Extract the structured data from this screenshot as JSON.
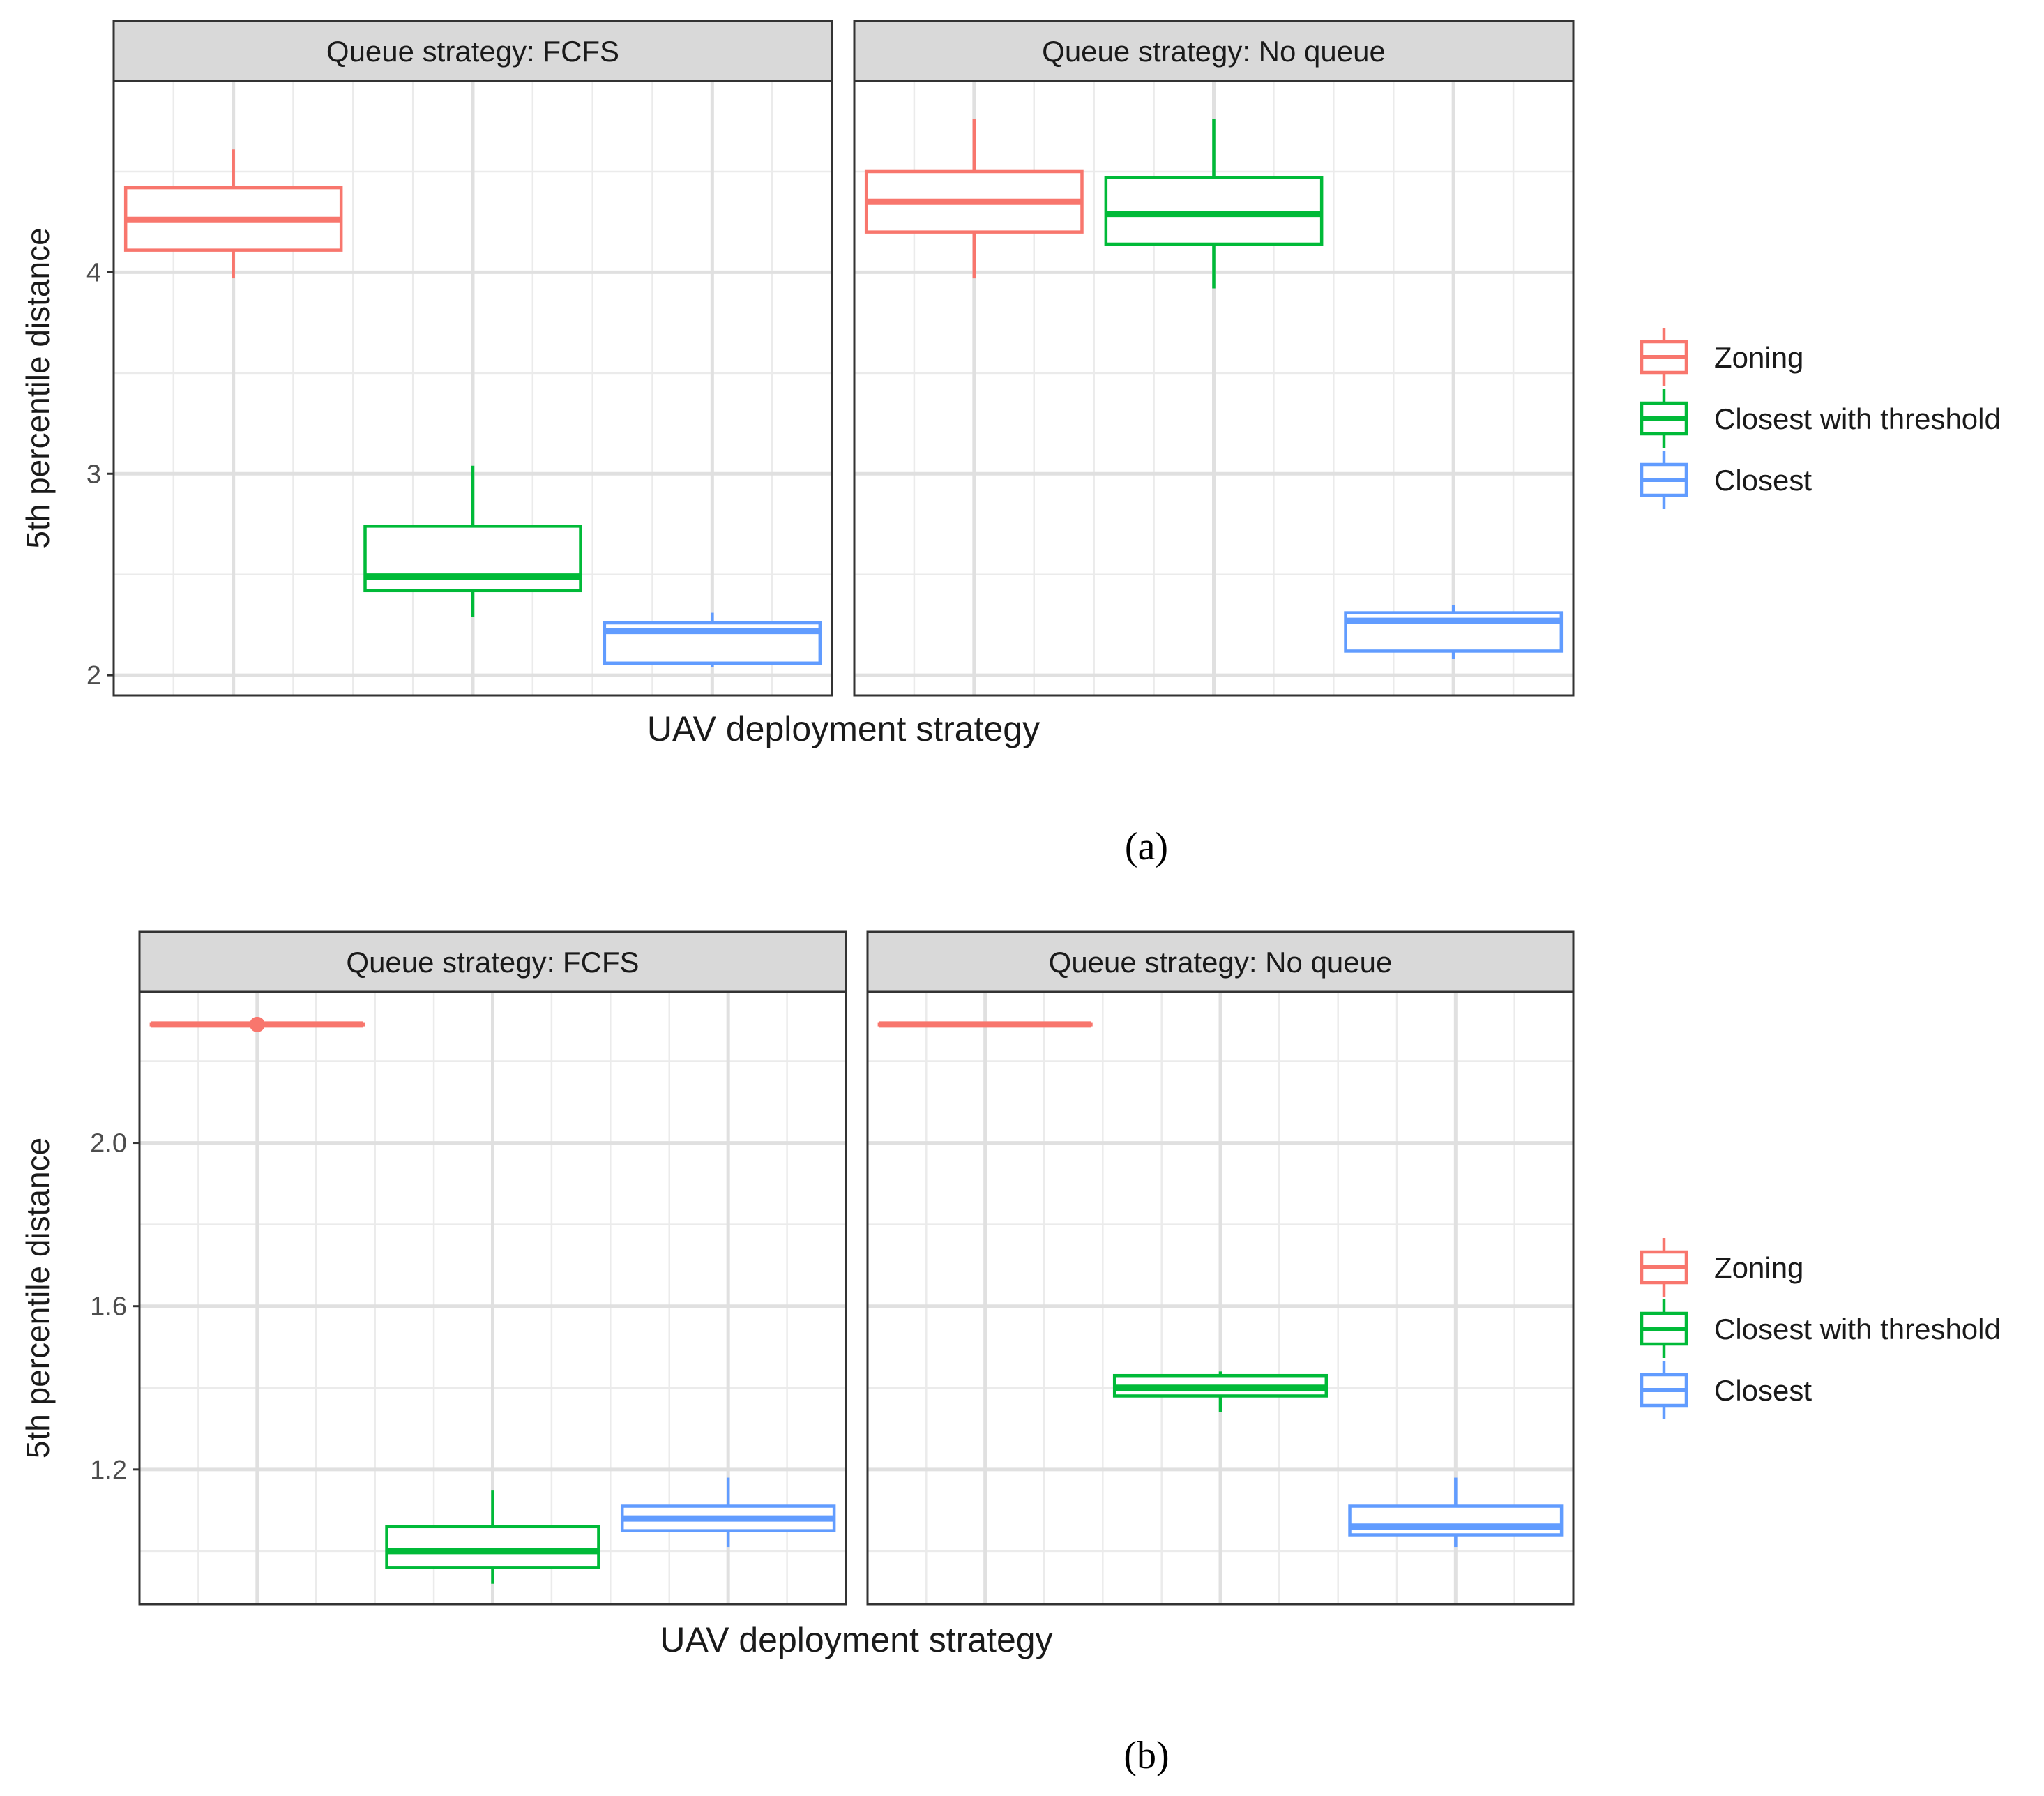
{
  "chart_data": [
    {
      "type": "boxplot",
      "caption": "(a)",
      "ylabel": "5th percentile distance",
      "xlabel": "UAV deployment strategy",
      "ylim": [
        1.9,
        4.95
      ],
      "yticks": [
        2,
        3,
        4
      ],
      "ytick_labels": [
        "2",
        "3",
        "4"
      ],
      "legend": {
        "entries": [
          {
            "name": "Zoning",
            "color": "#F8766D"
          },
          {
            "name": "Closest with threshold",
            "color": "#00BA38"
          },
          {
            "name": "Closest",
            "color": "#619CFF"
          }
        ],
        "placement": "right"
      },
      "panels": [
        {
          "strip": "Queue strategy: FCFS",
          "boxes": [
            {
              "series": "Zoning",
              "whisker_low": 3.97,
              "q1": 4.11,
              "median": 4.26,
              "q3": 4.42,
              "whisker_high": 4.61,
              "outliers": []
            },
            {
              "series": "Closest with threshold",
              "whisker_low": 2.29,
              "q1": 2.42,
              "median": 2.49,
              "q3": 2.74,
              "whisker_high": 3.04,
              "outliers": []
            },
            {
              "series": "Closest",
              "whisker_low": 2.04,
              "q1": 2.06,
              "median": 2.22,
              "q3": 2.26,
              "whisker_high": 2.31,
              "outliers": []
            }
          ]
        },
        {
          "strip": "Queue strategy: No queue",
          "boxes": [
            {
              "series": "Zoning",
              "whisker_low": 3.97,
              "q1": 4.2,
              "median": 4.35,
              "q3": 4.5,
              "whisker_high": 4.76,
              "outliers": []
            },
            {
              "series": "Closest with threshold",
              "whisker_low": 3.92,
              "q1": 4.14,
              "median": 4.29,
              "q3": 4.47,
              "whisker_high": 4.76,
              "outliers": []
            },
            {
              "series": "Closest",
              "whisker_low": 2.08,
              "q1": 2.12,
              "median": 2.27,
              "q3": 2.31,
              "whisker_high": 2.35,
              "outliers": []
            }
          ]
        }
      ]
    },
    {
      "type": "boxplot",
      "caption": "(b)",
      "ylabel": "5th percentile distance",
      "xlabel": "UAV deployment strategy",
      "ylim": [
        0.87,
        2.37
      ],
      "yticks": [
        1.2,
        1.6,
        2.0
      ],
      "ytick_labels": [
        "1.2",
        "1.6",
        "2.0"
      ],
      "legend": {
        "entries": [
          {
            "name": "Zoning",
            "color": "#F8766D"
          },
          {
            "name": "Closest with threshold",
            "color": "#00BA38"
          },
          {
            "name": "Closest",
            "color": "#619CFF"
          }
        ],
        "placement": "right"
      },
      "panels": [
        {
          "strip": "Queue strategy: FCFS",
          "boxes": [
            {
              "series": "Zoning",
              "whisker_low": 2.29,
              "q1": 2.29,
              "median": 2.29,
              "q3": 2.29,
              "whisker_high": 2.29,
              "outliers": [
                2.29
              ]
            },
            {
              "series": "Closest with threshold",
              "whisker_low": 0.92,
              "q1": 0.96,
              "median": 1.0,
              "q3": 1.06,
              "whisker_high": 1.15,
              "outliers": []
            },
            {
              "series": "Closest",
              "whisker_low": 1.01,
              "q1": 1.05,
              "median": 1.08,
              "q3": 1.11,
              "whisker_high": 1.18,
              "outliers": []
            }
          ]
        },
        {
          "strip": "Queue strategy: No queue",
          "boxes": [
            {
              "series": "Zoning",
              "whisker_low": 2.29,
              "q1": 2.29,
              "median": 2.29,
              "q3": 2.29,
              "whisker_high": 2.29,
              "outliers": []
            },
            {
              "series": "Closest with threshold",
              "whisker_low": 1.34,
              "q1": 1.38,
              "median": 1.4,
              "q3": 1.43,
              "whisker_high": 1.44,
              "outliers": []
            },
            {
              "series": "Closest",
              "whisker_low": 1.01,
              "q1": 1.04,
              "median": 1.06,
              "q3": 1.11,
              "whisker_high": 1.18,
              "outliers": []
            }
          ]
        }
      ]
    }
  ]
}
